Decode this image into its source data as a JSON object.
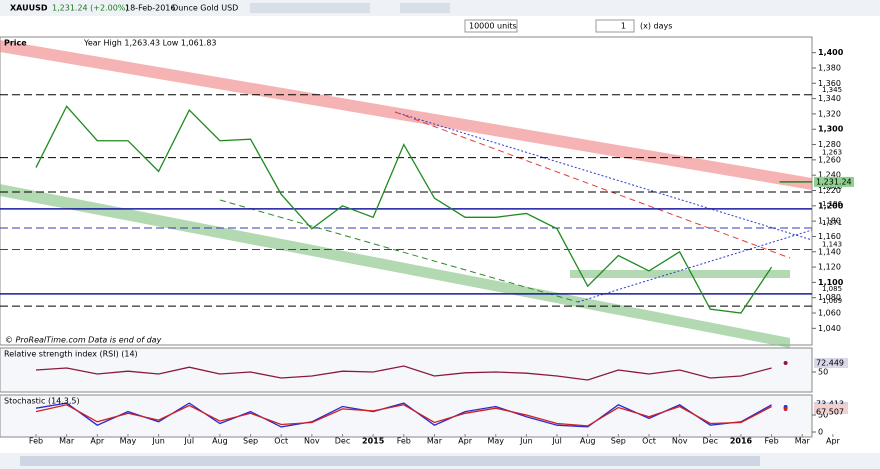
{
  "toolbar": {
    "symbol": "XAUUSD",
    "quote": "1,231.24 (+2.00%)",
    "date": "18-Feb-2016",
    "instrument": "Ounce Gold USD",
    "units": "10000 units",
    "period_count": "1",
    "period_unit": "(x) days"
  },
  "chart_data": [
    {
      "type": "line",
      "title": "Price",
      "subtitle": "Year High 1,263.43 Low 1,061.83",
      "annotation": "© ProRealTime.com  Data is end of day",
      "categories": [
        "Feb",
        "Mar",
        "Apr",
        "May",
        "Jun",
        "Jul",
        "Aug",
        "Sep",
        "Oct",
        "Nov",
        "Dec",
        "2015",
        "Feb",
        "Mar",
        "Apr",
        "May",
        "Jun",
        "Jul",
        "Aug",
        "Sep",
        "Oct",
        "Nov",
        "Dec",
        "2016",
        "Feb",
        "Mar",
        "Apr"
      ],
      "series": [
        {
          "color": "#1f8a1f",
          "values": [
            1250,
            1330,
            1285,
            1285,
            1245,
            1325,
            1285,
            1287,
            1215,
            1170,
            1200,
            1185,
            1280,
            1210,
            1185,
            1185,
            1190,
            1170,
            1095,
            1135,
            1115,
            1140,
            1065,
            1060,
            1120,
            null,
            null
          ]
        }
      ],
      "last": {
        "value": 1231.24,
        "label": "1,231.24"
      },
      "levels": [
        {
          "value": 1345,
          "label": "1,345",
          "style": "dashed",
          "color": "#000000"
        },
        {
          "value": 1263,
          "label": "1,263",
          "style": "dashed",
          "color": "#000000"
        },
        {
          "value": 1218,
          "label": "1,218",
          "style": "dashed",
          "color": "#000000"
        },
        {
          "value": 1196,
          "label": "1,196",
          "style": "solid",
          "color": "#1a1aa0"
        },
        {
          "value": 1171,
          "label": "1,171",
          "style": "dashed",
          "color": "#3a3ab0"
        },
        {
          "value": 1143,
          "label": "1,143",
          "style": "dashed",
          "color": "#3a3ab0"
        },
        {
          "value": 1085,
          "label": "1,085",
          "style": "solid",
          "color": "#1a1aa0"
        },
        {
          "value": 1069,
          "label": "1,069",
          "style": "dashed",
          "color": "#000000"
        }
      ],
      "ylim": [
        1030,
        1410
      ],
      "yticks": [
        {
          "value": 1040,
          "label": "1,040"
        },
        {
          "value": 1060,
          "label": "1,060"
        },
        {
          "value": 1080,
          "label": "1,080"
        },
        {
          "value": 1100,
          "label": "1,100"
        },
        {
          "value": 1120,
          "label": "1,120"
        },
        {
          "value": 1140,
          "label": "1,140"
        },
        {
          "value": 1160,
          "label": "1,160"
        },
        {
          "value": 1180,
          "label": "1,180"
        },
        {
          "value": 1200,
          "label": "1,200"
        },
        {
          "value": 1220,
          "label": "1,220"
        },
        {
          "value": 1240,
          "label": "1,240"
        },
        {
          "value": 1260,
          "label": "1,260"
        },
        {
          "value": 1280,
          "label": "1,280"
        },
        {
          "value": 1300,
          "label": "1,300"
        },
        {
          "value": 1320,
          "label": "1,320"
        },
        {
          "value": 1340,
          "label": "1,340"
        },
        {
          "value": 1360,
          "label": "1,360"
        },
        {
          "value": 1380,
          "label": "1,380"
        },
        {
          "value": 1400,
          "label": "1,400"
        }
      ]
    },
    {
      "type": "line",
      "title": "Relative strength index (RSI) (14)",
      "series": [
        {
          "color": "#8b1a3a",
          "values": [
            55,
            60,
            45,
            52,
            45,
            62,
            45,
            50,
            35,
            40,
            52,
            50,
            65,
            40,
            48,
            50,
            47,
            40,
            30,
            55,
            45,
            55,
            35,
            40,
            60,
            null,
            null
          ]
        }
      ],
      "last": 72.449,
      "ylim": [
        0,
        100
      ],
      "yticks": [
        50
      ]
    },
    {
      "type": "line",
      "title": "Stochastic (14,3,5)",
      "series": [
        {
          "color": "#2a2ad0",
          "values": [
            70,
            85,
            20,
            60,
            30,
            85,
            25,
            60,
            15,
            30,
            75,
            60,
            85,
            20,
            60,
            75,
            45,
            20,
            15,
            80,
            40,
            80,
            20,
            30,
            80,
            null,
            null
          ]
        },
        {
          "color": "#d02020",
          "values": [
            60,
            80,
            30,
            55,
            35,
            78,
            32,
            55,
            22,
            28,
            68,
            62,
            80,
            28,
            55,
            70,
            50,
            25,
            18,
            72,
            45,
            75,
            25,
            28,
            75,
            null,
            null
          ]
        }
      ],
      "last": [
        73.413,
        67.507
      ],
      "ylim": [
        0,
        100
      ],
      "yticks": [
        0,
        50
      ]
    }
  ]
}
